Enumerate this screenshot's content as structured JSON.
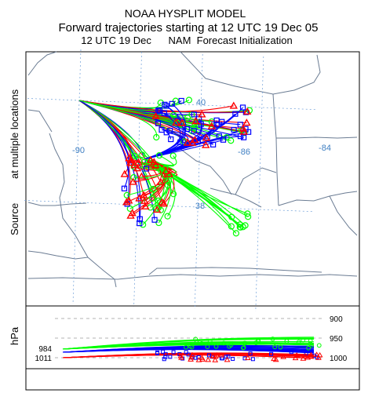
{
  "chart_data": {
    "type": "line",
    "title": "NOAA HYSPLIT MODEL",
    "subtitle": "Forward trajectories starting at 12 UTC 19 Dec 05",
    "subtitle2": "12 UTC 19 Dec      NAM  Forecast Initialization",
    "map_ylabel": "Source",
    "map_ylabel2": "at multiple locations",
    "pressure_ylabel": "hPa",
    "latitude_labels": [
      "40",
      "38"
    ],
    "longitude_labels": [
      "-90",
      "-86",
      "-84"
    ],
    "pressure_levels": [
      "900",
      "950",
      "1000"
    ],
    "source_pressure_labels": [
      "984",
      "1011"
    ],
    "grid": true,
    "colors": {
      "red": "#ff0000",
      "blue": "#0000ff",
      "green": "#00ff00",
      "border": "#6b7c93",
      "grid": "#6f9fd8"
    },
    "marker_names": {
      "red": "triangle-marker",
      "blue": "square-marker",
      "green": "circle-marker"
    },
    "sources": [
      {
        "name": "source-1",
        "lon": -90.0,
        "lat": 40.0,
        "pressure": 1011
      },
      {
        "name": "source-2",
        "lon": -87.8,
        "lat": 38.9,
        "pressure": 984
      }
    ],
    "end_cloud_A": {
      "lon": [
        -87.5,
        -84.4
      ],
      "lat": [
        39.2,
        40.1
      ]
    },
    "end_cloud_B": {
      "lon": [
        -88.5,
        -86.8
      ],
      "lat": [
        37.6,
        39.0
      ]
    }
  }
}
